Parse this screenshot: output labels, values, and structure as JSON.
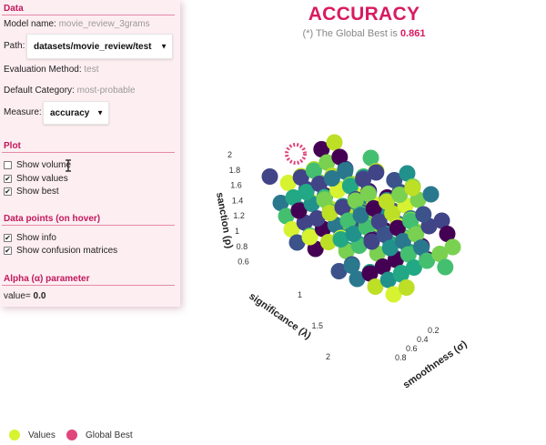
{
  "header": {
    "title": "ACCURACY",
    "subtitle_prefix": "(*) The Global Best is",
    "best_value": "0.861"
  },
  "sidebar": {
    "data": {
      "heading": "Data",
      "model_label": "Model name:",
      "model_value": "movie_review_3grams",
      "path_label": "Path:",
      "path_value": "datasets/movie_review/test",
      "eval_label": "Evaluation Method:",
      "eval_value": "test",
      "category_label": "Default Category:",
      "category_value": "most-probable",
      "measure_label": "Measure:",
      "measure_value": "accuracy"
    },
    "plot": {
      "heading": "Plot",
      "options": [
        {
          "label": "Show volume",
          "checked": false
        },
        {
          "label": "Show values",
          "checked": true
        },
        {
          "label": "Show best",
          "checked": true
        }
      ]
    },
    "hover": {
      "heading": "Data points (on hover)",
      "options": [
        {
          "label": "Show info",
          "checked": true
        },
        {
          "label": "Show confusion matrices",
          "checked": true
        }
      ]
    },
    "alpha": {
      "heading": "Alpha (α) parameter",
      "value_label": "value=",
      "value": "0.0"
    }
  },
  "plot3d": {
    "axis_sanction": {
      "title": "sanction (ρ)",
      "ticks": [
        "2",
        "1.8",
        "1.6",
        "1.4",
        "1.2",
        "1",
        "0.8",
        "0.6"
      ]
    },
    "axis_significance": {
      "title": "significance (λ)",
      "ticks": [
        "1",
        "1.5",
        "2"
      ]
    },
    "axis_smoothness": {
      "title": "smoothness (σ)",
      "ticks": [
        "0.2",
        "0.4",
        "0.6",
        "0.8"
      ]
    }
  },
  "legend": {
    "values_label": "Values",
    "best_label": "Global Best",
    "values_color": "#d7f230",
    "best_color": "#e0457b"
  },
  "colors": {
    "accent": "#d81b60",
    "panel_bg": "#fdeef2"
  }
}
